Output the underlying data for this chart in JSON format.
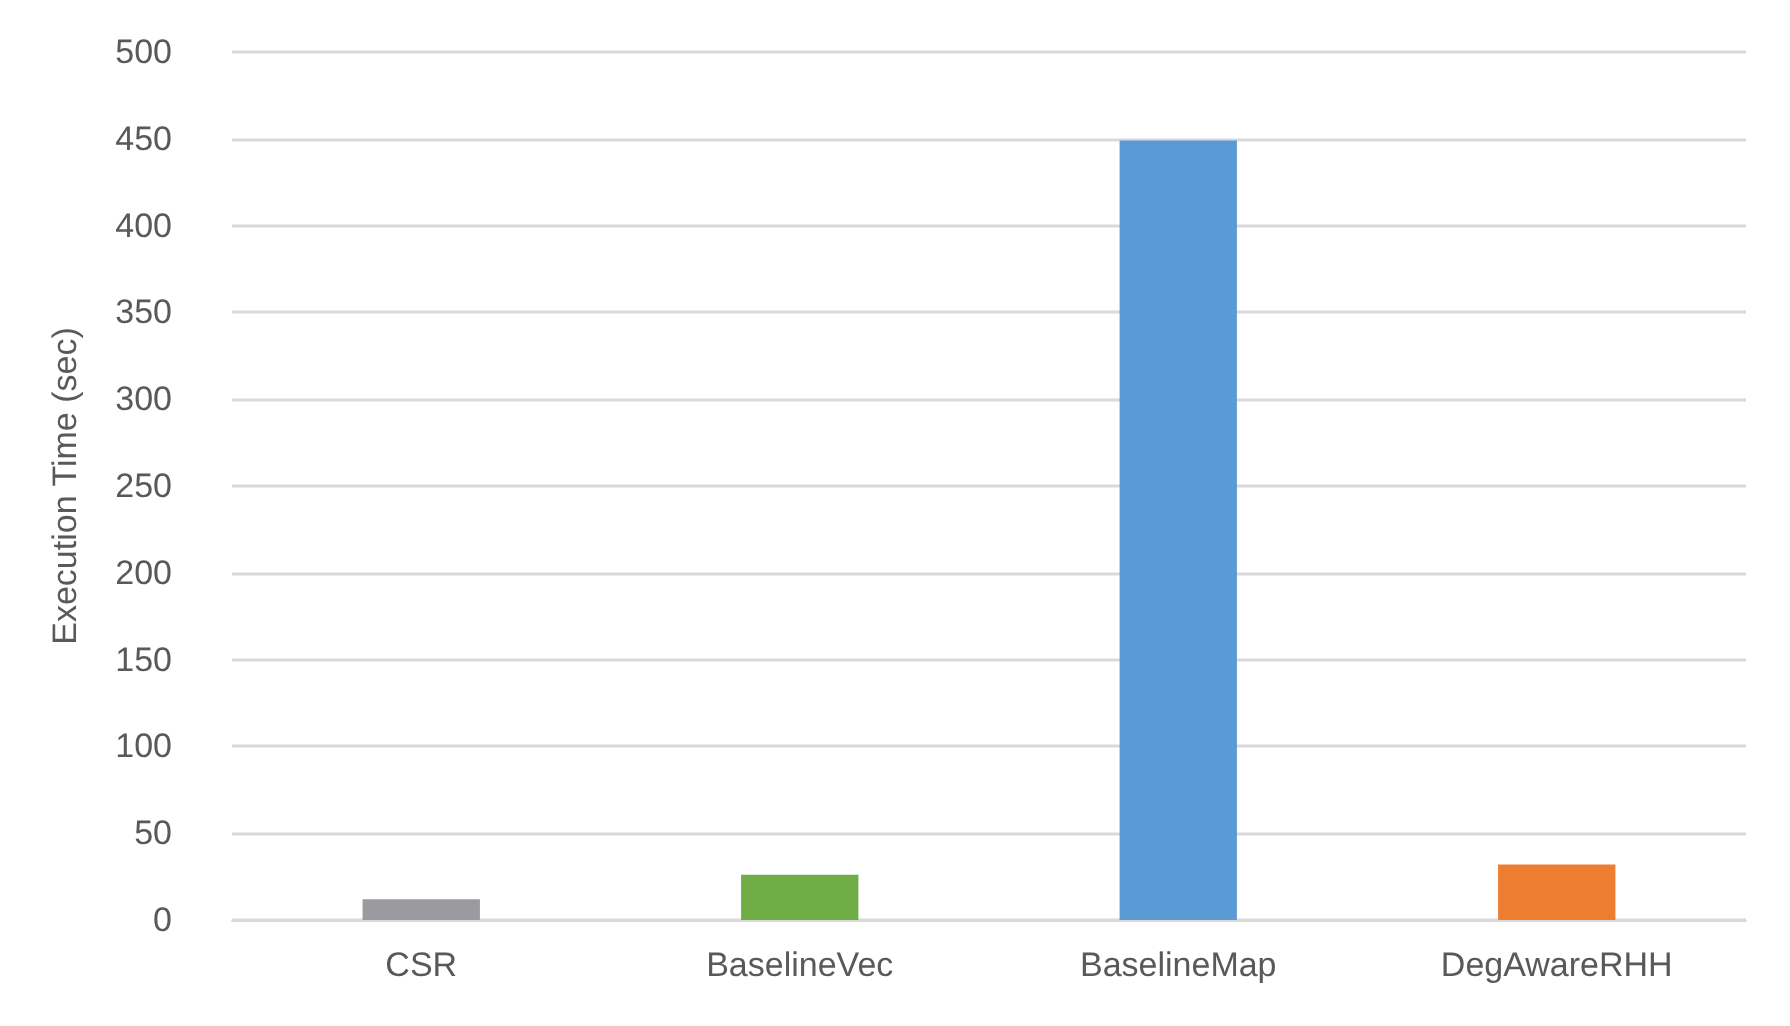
{
  "chart_data": {
    "type": "bar",
    "ylabel": "Execution Time (sec)",
    "categories": [
      "CSR",
      "BaselineVec",
      "BaselineMap",
      "DegAwareRHH"
    ],
    "values": [
      12,
      26,
      449,
      32
    ],
    "colors": [
      "#9a9a9f",
      "#70ad47",
      "#5b9bd5",
      "#ed7d31"
    ],
    "ylim": [
      0,
      500
    ],
    "yticks": [
      0,
      50,
      100,
      150,
      200,
      250,
      300,
      350,
      400,
      450,
      500
    ],
    "grid": "y"
  }
}
